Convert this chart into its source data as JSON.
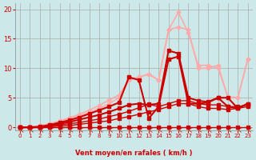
{
  "bg_color": "#cce8e8",
  "grid_color": "#aaaaaa",
  "xlabel": "Vent moyen/en rafales ( km/h )",
  "xlabel_color": "#cc0000",
  "tick_color": "#cc0000",
  "x_ticks": [
    0,
    1,
    2,
    3,
    4,
    5,
    6,
    7,
    8,
    9,
    10,
    11,
    12,
    13,
    14,
    15,
    16,
    17,
    18,
    19,
    20,
    21,
    22,
    23
  ],
  "ylim": [
    -0.5,
    21
  ],
  "xlim": [
    -0.5,
    23.5
  ],
  "yticks": [
    0,
    5,
    10,
    15,
    20
  ],
  "series": [
    {
      "x": [
        0,
        1,
        2,
        3,
        4,
        5,
        6,
        7,
        8,
        9,
        10,
        11,
        12,
        13,
        14,
        15,
        16,
        17,
        18,
        19,
        20,
        21,
        22,
        23
      ],
      "y": [
        0,
        0,
        0,
        0,
        0,
        0,
        0,
        0,
        0,
        0,
        0,
        0,
        0,
        0,
        0,
        0,
        0,
        0,
        0,
        0,
        0,
        0,
        0,
        0
      ],
      "color": "#cc0000",
      "lw": 1.0,
      "marker": "s",
      "ms": 2.5,
      "zorder": 5
    },
    {
      "x": [
        0,
        1,
        2,
        3,
        4,
        5,
        6,
        7,
        8,
        9,
        10,
        11,
        12,
        13,
        14,
        15,
        16,
        17,
        18,
        19,
        20,
        21,
        22,
        23
      ],
      "y": [
        0,
        0,
        0,
        0.1,
        0.2,
        0.3,
        0.5,
        0.7,
        0.9,
        1.1,
        1.5,
        1.8,
        2.2,
        2.6,
        3.0,
        3.5,
        4.0,
        4.0,
        3.5,
        3.2,
        3.2,
        3.0,
        3.2,
        3.5
      ],
      "color": "#cc0000",
      "lw": 1.0,
      "marker": "s",
      "ms": 2.5,
      "zorder": 5
    },
    {
      "x": [
        0,
        1,
        2,
        3,
        4,
        5,
        6,
        7,
        8,
        9,
        10,
        11,
        12,
        13,
        14,
        15,
        16,
        17,
        18,
        19,
        20,
        21,
        22,
        23
      ],
      "y": [
        0,
        0,
        0,
        0.2,
        0.4,
        0.6,
        0.8,
        1.1,
        1.4,
        1.8,
        2.2,
        2.7,
        3.3,
        3.9,
        3.5,
        4.0,
        4.5,
        4.5,
        4.0,
        3.8,
        3.8,
        3.5,
        3.5,
        3.8
      ],
      "color": "#cc0000",
      "lw": 1.0,
      "marker": "s",
      "ms": 2.5,
      "zorder": 5
    },
    {
      "x": [
        0,
        1,
        2,
        3,
        4,
        5,
        6,
        7,
        8,
        9,
        10,
        11,
        12,
        13,
        14,
        15,
        16,
        17,
        18,
        19,
        20,
        21,
        22,
        23
      ],
      "y": [
        0,
        0,
        0,
        0.3,
        0.6,
        0.9,
        1.3,
        1.7,
        2.1,
        2.6,
        3.2,
        3.8,
        4.0,
        3.8,
        4.0,
        13.0,
        12.5,
        5.0,
        4.5,
        4.3,
        5.0,
        3.5,
        3.2,
        4.0
      ],
      "color": "#cc0000",
      "lw": 1.5,
      "marker": "s",
      "ms": 3.0,
      "zorder": 6
    },
    {
      "x": [
        0,
        1,
        2,
        3,
        4,
        5,
        6,
        7,
        8,
        9,
        10,
        11,
        12,
        13,
        14,
        15,
        16,
        17,
        18,
        19,
        20,
        21,
        22,
        23
      ],
      "y": [
        0,
        0,
        0.1,
        0.4,
        0.8,
        1.2,
        1.7,
        2.3,
        2.9,
        3.5,
        4.2,
        8.5,
        8.0,
        1.5,
        3.5,
        11.5,
        12.0,
        4.0,
        4.0,
        4.2,
        5.0,
        5.0,
        3.2,
        4.0
      ],
      "color": "#cc0000",
      "lw": 1.5,
      "marker": "s",
      "ms": 3.0,
      "zorder": 6
    },
    {
      "x": [
        0,
        1,
        2,
        3,
        4,
        5,
        6,
        7,
        8,
        9,
        10,
        11,
        12,
        13,
        14,
        15,
        16,
        17,
        18,
        19,
        20,
        21,
        22,
        23
      ],
      "y": [
        0,
        0,
        0.2,
        0.5,
        0.9,
        1.4,
        1.9,
        2.5,
        3.2,
        4.0,
        5.0,
        8.0,
        8.5,
        9.0,
        8.0,
        16.5,
        17.0,
        16.5,
        10.0,
        10.0,
        10.5,
        5.0,
        5.0,
        11.5
      ],
      "color": "#ffaaaa",
      "lw": 1.2,
      "marker": "D",
      "ms": 2.5,
      "zorder": 4
    },
    {
      "x": [
        0,
        1,
        2,
        3,
        4,
        5,
        6,
        7,
        8,
        9,
        10,
        11,
        12,
        13,
        14,
        15,
        16,
        17,
        18,
        19,
        20,
        21,
        22,
        23
      ],
      "y": [
        0,
        0,
        0.3,
        0.6,
        1.1,
        1.6,
        2.2,
        2.9,
        3.7,
        4.6,
        5.5,
        8.0,
        8.5,
        9.0,
        8.0,
        16.5,
        19.5,
        16.0,
        10.5,
        10.5,
        10.0,
        5.2,
        5.0,
        11.5
      ],
      "color": "#ffaaaa",
      "lw": 1.2,
      "marker": "D",
      "ms": 2.5,
      "zorder": 4
    }
  ],
  "wind_arrows_color": "#cc0000",
  "title_color": "#cc0000"
}
